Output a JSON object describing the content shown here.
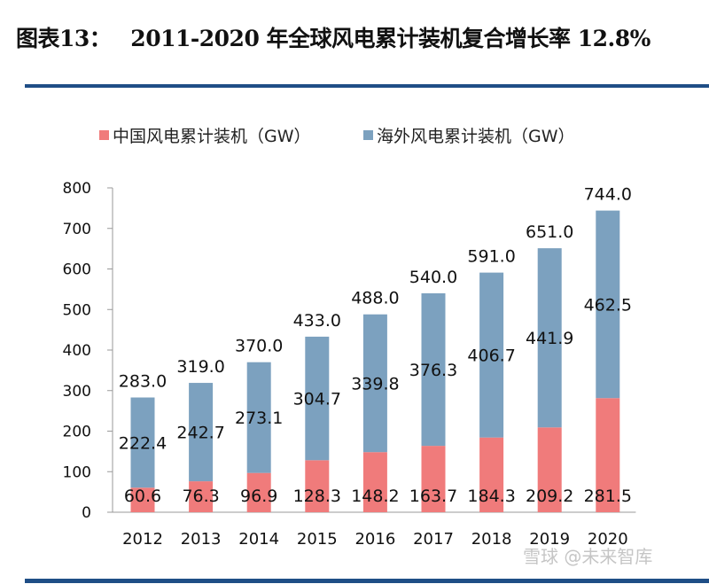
{
  "title": {
    "prefix": "图表13：",
    "text": "2011-2020 年全球风电累计装机复合增长率 12.8%"
  },
  "watermark": "雪球 @未来智库",
  "chart_data": {
    "type": "bar",
    "stacked": true,
    "categories": [
      "2012",
      "2013",
      "2014",
      "2015",
      "2016",
      "2017",
      "2018",
      "2019",
      "2020"
    ],
    "series": [
      {
        "name": "中国风电累计装机（GW）",
        "color": "#f07b7b",
        "values": [
          60.6,
          76.3,
          96.9,
          128.3,
          148.2,
          163.7,
          184.3,
          209.2,
          281.5
        ]
      },
      {
        "name": "海外风电累计装机（GW）",
        "color": "#7ca1bf",
        "values": [
          222.4,
          242.7,
          273.1,
          304.7,
          339.8,
          376.3,
          406.7,
          441.9,
          462.5
        ]
      }
    ],
    "totals": [
      283.0,
      319.0,
      370.0,
      433.0,
      488.0,
      540.0,
      591.0,
      651.0,
      744.0
    ],
    "ylim": [
      0,
      800
    ],
    "yticks": [
      0,
      100,
      200,
      300,
      400,
      500,
      600,
      700,
      800
    ],
    "legend": "top",
    "grid": false
  }
}
